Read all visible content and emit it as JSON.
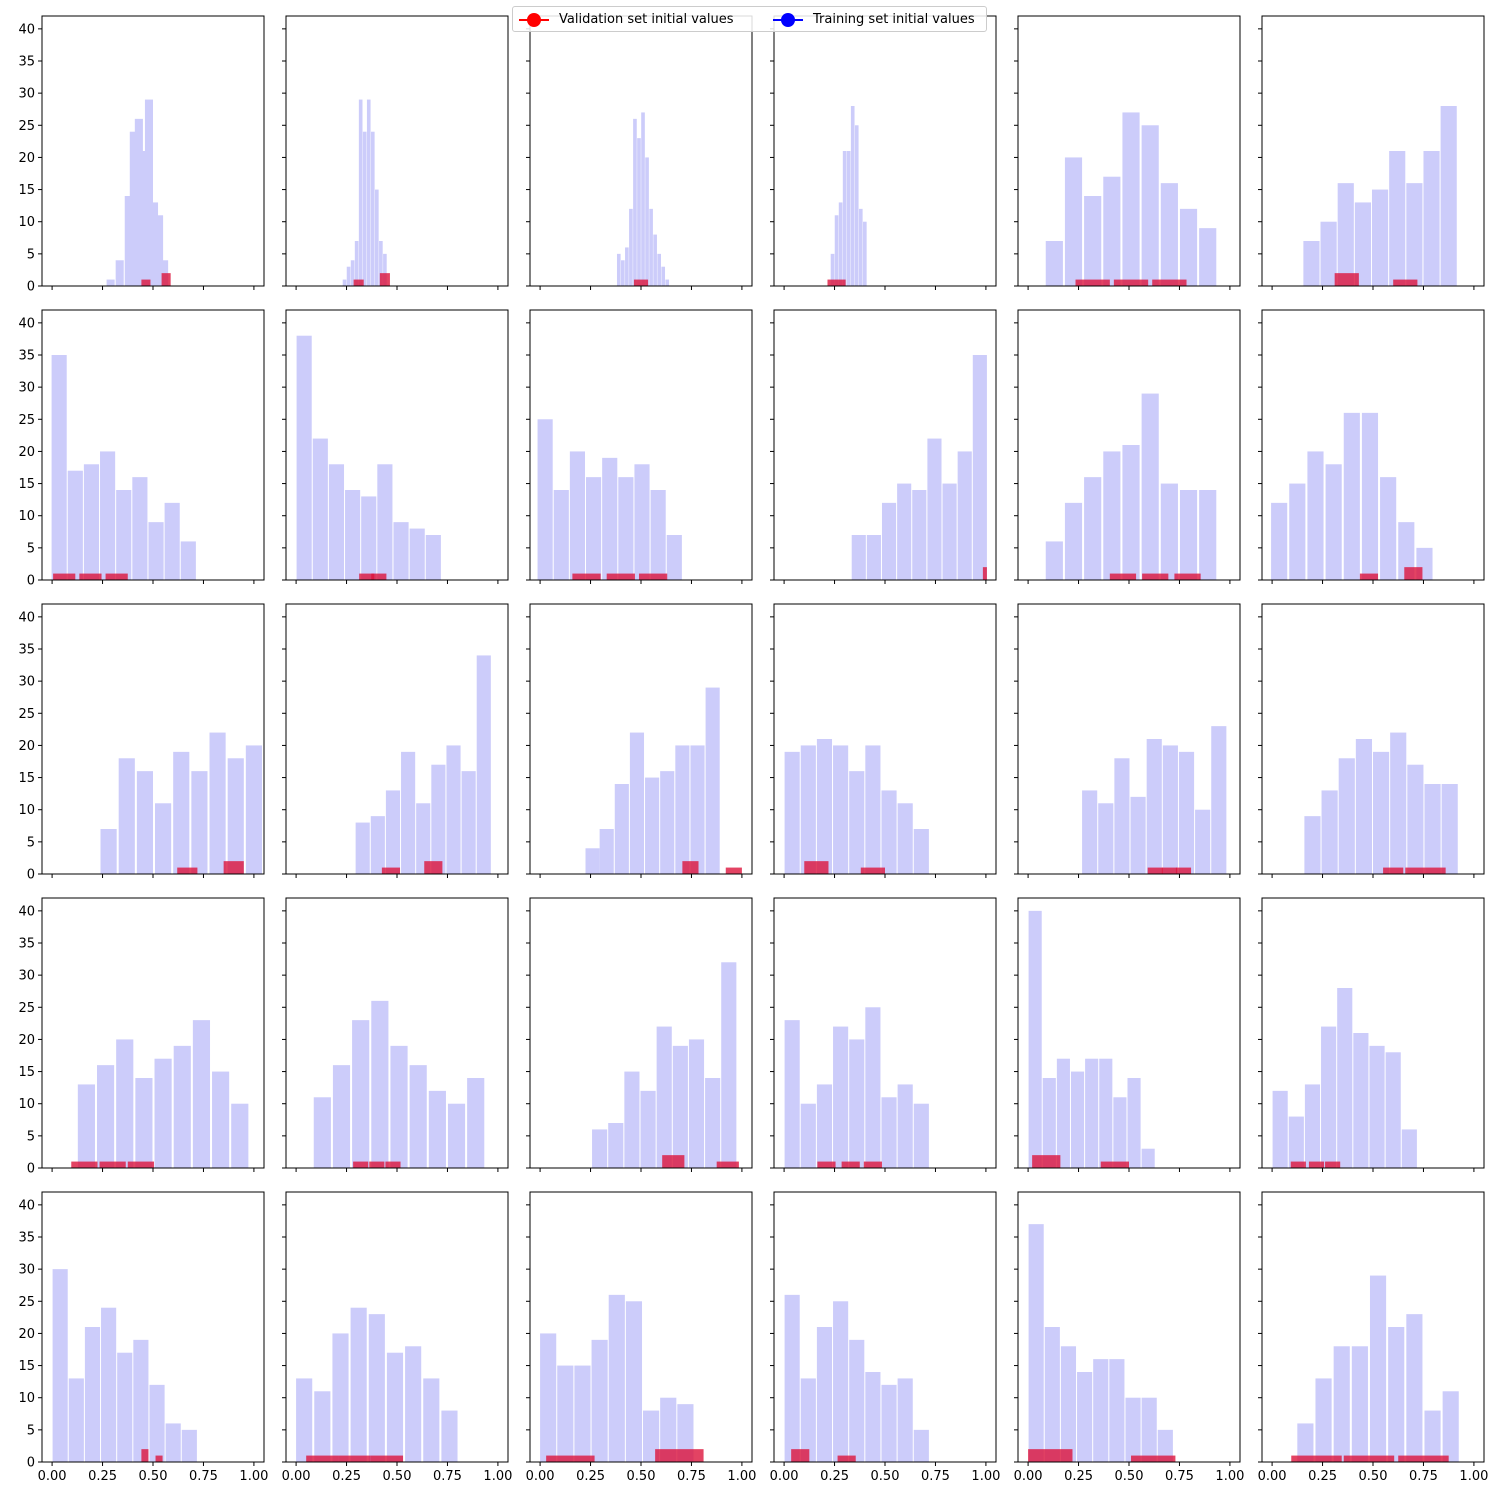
{
  "legend": {
    "validation": {
      "label": "Validation set initial values",
      "color": "#ff0000"
    },
    "training": {
      "label": "Training set initial values",
      "color": "#0000ff"
    }
  },
  "colors": {
    "training_bar": "#ccccfa",
    "validation_bar": "#dc143c"
  },
  "chart_data": [
    {
      "type": "bar",
      "x": [
        0.29,
        0.335,
        0.38,
        0.405,
        0.43,
        0.455,
        0.48,
        0.505,
        0.53,
        0.555,
        0.58,
        0.605,
        0.65
      ],
      "values": [
        1,
        4,
        14,
        24,
        26,
        21,
        29,
        13,
        11,
        4,
        0,
        0,
        0
      ],
      "barwidth": 0.04,
      "validation": {
        "x": [
          0.465,
          0.565
        ],
        "values": [
          1,
          2
        ],
        "barwidth": 0.045
      },
      "xlim": [
        -0.05,
        1.05
      ],
      "ylim": [
        0,
        42
      ]
    },
    {
      "type": "bar",
      "x": [
        0.24,
        0.26,
        0.28,
        0.3,
        0.32,
        0.34,
        0.36,
        0.38,
        0.4,
        0.42,
        0.44,
        0.46
      ],
      "values": [
        1,
        3,
        4,
        7,
        29,
        24,
        29,
        24,
        15,
        7,
        5,
        0
      ],
      "barwidth": 0.018,
      "validation": {
        "x": [
          0.31,
          0.44
        ],
        "values": [
          1,
          2
        ],
        "barwidth": 0.05
      },
      "xlim": [
        -0.05,
        1.05
      ],
      "ylim": [
        0,
        42
      ]
    },
    {
      "type": "bar",
      "x": [
        0.39,
        0.41,
        0.43,
        0.45,
        0.47,
        0.49,
        0.51,
        0.53,
        0.55,
        0.57,
        0.59,
        0.61,
        0.63,
        0.65
      ],
      "values": [
        5,
        4,
        6,
        12,
        26,
        23,
        27,
        20,
        12,
        8,
        5,
        3,
        1,
        0
      ],
      "barwidth": 0.018,
      "validation": {
        "x": [
          0.5
        ],
        "values": [
          1
        ],
        "barwidth": 0.07
      },
      "xlim": [
        -0.05,
        1.05
      ],
      "ylim": [
        0,
        42
      ]
    },
    {
      "type": "bar",
      "x": [
        0.24,
        0.26,
        0.28,
        0.3,
        0.32,
        0.34,
        0.36,
        0.38,
        0.4,
        0.42
      ],
      "values": [
        5,
        11,
        13,
        21,
        21,
        28,
        25,
        12,
        10,
        0
      ],
      "barwidth": 0.018,
      "validation": {
        "x": [
          0.26
        ],
        "values": [
          1
        ],
        "barwidth": 0.09
      },
      "xlim": [
        -0.05,
        1.05
      ],
      "ylim": [
        0,
        42
      ]
    },
    {
      "type": "bar",
      "x": [
        0.13,
        0.225,
        0.32,
        0.415,
        0.51,
        0.605,
        0.7,
        0.795,
        0.89
      ],
      "values": [
        7,
        20,
        14,
        17,
        27,
        25,
        16,
        12,
        9
      ],
      "barwidth": 0.085,
      "validation": {
        "x": [
          0.32,
          0.51,
          0.7
        ],
        "values": [
          1,
          1,
          1
        ],
        "barwidth": 0.17
      },
      "xlim": [
        -0.05,
        1.05
      ],
      "ylim": [
        0,
        42
      ]
    },
    {
      "type": "bar",
      "x": [
        0.195,
        0.28,
        0.365,
        0.45,
        0.535,
        0.62,
        0.705,
        0.79,
        0.875,
        0.96
      ],
      "values": [
        7,
        10,
        16,
        13,
        15,
        21,
        16,
        21,
        28,
        0
      ],
      "barwidth": 0.08,
      "validation": {
        "x": [
          0.37,
          0.66
        ],
        "values": [
          2,
          1
        ],
        "barwidth": 0.12
      },
      "xlim": [
        -0.05,
        1.05
      ],
      "ylim": [
        0,
        42
      ]
    },
    {
      "type": "bar",
      "x": [
        0.035,
        0.115,
        0.195,
        0.275,
        0.355,
        0.435,
        0.515,
        0.595,
        0.675
      ],
      "values": [
        35,
        17,
        18,
        20,
        14,
        16,
        9,
        12,
        6
      ],
      "barwidth": 0.075,
      "validation": {
        "x": [
          0.06,
          0.19,
          0.32
        ],
        "values": [
          1,
          1,
          1
        ],
        "barwidth": 0.11
      },
      "xlim": [
        -0.05,
        1.05
      ],
      "ylim": [
        0,
        42
      ]
    },
    {
      "type": "bar",
      "x": [
        0.04,
        0.12,
        0.2,
        0.28,
        0.36,
        0.44,
        0.52,
        0.6,
        0.68
      ],
      "values": [
        38,
        22,
        18,
        14,
        13,
        18,
        9,
        8,
        7
      ],
      "barwidth": 0.075,
      "validation": {
        "x": [
          0.35,
          0.41
        ],
        "values": [
          1,
          1
        ],
        "barwidth": 0.075
      },
      "xlim": [
        -0.05,
        1.05
      ],
      "ylim": [
        0,
        42
      ]
    },
    {
      "type": "bar",
      "x": [
        0.025,
        0.105,
        0.185,
        0.265,
        0.345,
        0.425,
        0.505,
        0.585,
        0.665,
        0.745
      ],
      "values": [
        25,
        14,
        20,
        16,
        19,
        16,
        18,
        14,
        7,
        0
      ],
      "barwidth": 0.075,
      "validation": {
        "x": [
          0.23,
          0.4,
          0.56
        ],
        "values": [
          1,
          1,
          1
        ],
        "barwidth": 0.14
      },
      "xlim": [
        -0.05,
        1.05
      ],
      "ylim": [
        0,
        42
      ]
    },
    {
      "type": "bar",
      "x": [
        0.37,
        0.445,
        0.52,
        0.595,
        0.67,
        0.745,
        0.82,
        0.895,
        0.97
      ],
      "values": [
        7,
        7,
        12,
        15,
        14,
        22,
        15,
        20,
        35
      ],
      "barwidth": 0.07,
      "validation": {
        "x": [
          0.995
        ],
        "values": [
          2
        ],
        "barwidth": 0.02
      },
      "xlim": [
        -0.05,
        1.05
      ],
      "ylim": [
        0,
        42
      ]
    },
    {
      "type": "bar",
      "x": [
        0.13,
        0.225,
        0.32,
        0.415,
        0.51,
        0.605,
        0.7,
        0.795,
        0.89
      ],
      "values": [
        6,
        12,
        16,
        20,
        21,
        29,
        15,
        14,
        14
      ],
      "barwidth": 0.085,
      "validation": {
        "x": [
          0.47,
          0.63,
          0.79
        ],
        "values": [
          1,
          1,
          1
        ],
        "barwidth": 0.13
      },
      "xlim": [
        -0.05,
        1.05
      ],
      "ylim": [
        0,
        42
      ]
    },
    {
      "type": "bar",
      "x": [
        0.035,
        0.125,
        0.215,
        0.305,
        0.395,
        0.485,
        0.575,
        0.665,
        0.755
      ],
      "values": [
        12,
        15,
        20,
        18,
        26,
        26,
        16,
        9,
        5
      ],
      "barwidth": 0.08,
      "validation": {
        "x": [
          0.48,
          0.7
        ],
        "values": [
          1,
          2
        ],
        "barwidth": 0.09
      },
      "xlim": [
        -0.05,
        1.05
      ],
      "ylim": [
        0,
        42
      ]
    },
    {
      "type": "bar",
      "x": [
        0.28,
        0.37,
        0.46,
        0.55,
        0.64,
        0.73,
        0.82,
        0.91,
        1.0
      ],
      "values": [
        7,
        18,
        16,
        11,
        19,
        16,
        22,
        18,
        20
      ],
      "barwidth": 0.08,
      "validation": {
        "x": [
          0.67,
          0.9
        ],
        "values": [
          1,
          2
        ],
        "barwidth": 0.1
      },
      "xlim": [
        -0.05,
        1.05
      ],
      "ylim": [
        0,
        42
      ]
    },
    {
      "type": "bar",
      "x": [
        0.33,
        0.405,
        0.48,
        0.555,
        0.63,
        0.705,
        0.78,
        0.855,
        0.93
      ],
      "values": [
        8,
        9,
        13,
        19,
        11,
        17,
        20,
        16,
        34
      ],
      "barwidth": 0.07,
      "validation": {
        "x": [
          0.47,
          0.68
        ],
        "values": [
          1,
          2
        ],
        "barwidth": 0.09
      },
      "xlim": [
        -0.05,
        1.05
      ],
      "ylim": [
        0,
        42
      ]
    },
    {
      "type": "bar",
      "x": [
        0.26,
        0.33,
        0.405,
        0.48,
        0.555,
        0.63,
        0.705,
        0.78,
        0.855,
        0.93
      ],
      "values": [
        4,
        7,
        14,
        22,
        15,
        16,
        20,
        20,
        29,
        0
      ],
      "barwidth": 0.07,
      "validation": {
        "x": [
          0.745,
          0.96
        ],
        "values": [
          2,
          1
        ],
        "barwidth": 0.08
      },
      "xlim": [
        -0.05,
        1.05
      ],
      "ylim": [
        0,
        42
      ]
    },
    {
      "type": "bar",
      "x": [
        0.04,
        0.12,
        0.2,
        0.28,
        0.36,
        0.44,
        0.52,
        0.6,
        0.68,
        0.76
      ],
      "values": [
        19,
        20,
        21,
        20,
        16,
        20,
        13,
        11,
        7,
        0
      ],
      "barwidth": 0.075,
      "validation": {
        "x": [
          0.16,
          0.44
        ],
        "values": [
          2,
          1
        ],
        "barwidth": 0.12
      },
      "xlim": [
        -0.05,
        1.05
      ],
      "ylim": [
        0,
        42
      ]
    },
    {
      "type": "bar",
      "x": [
        0.305,
        0.385,
        0.465,
        0.545,
        0.625,
        0.705,
        0.785,
        0.865,
        0.945
      ],
      "values": [
        13,
        11,
        18,
        12,
        21,
        20,
        19,
        10,
        23
      ],
      "barwidth": 0.075,
      "validation": {
        "x": [
          0.63,
          0.7,
          0.77
        ],
        "values": [
          1,
          1,
          1
        ],
        "barwidth": 0.075
      },
      "xlim": [
        -0.05,
        1.05
      ],
      "ylim": [
        0,
        42
      ]
    },
    {
      "type": "bar",
      "x": [
        0.2,
        0.285,
        0.37,
        0.455,
        0.54,
        0.625,
        0.71,
        0.795,
        0.88,
        0.965
      ],
      "values": [
        9,
        13,
        18,
        21,
        19,
        22,
        17,
        14,
        14,
        0
      ],
      "barwidth": 0.08,
      "validation": {
        "x": [
          0.6,
          0.71,
          0.81
        ],
        "values": [
          1,
          1,
          1
        ],
        "barwidth": 0.1
      },
      "xlim": [
        -0.05,
        1.05
      ],
      "ylim": [
        0,
        42
      ]
    },
    {
      "type": "bar",
      "x": [
        0.17,
        0.265,
        0.36,
        0.455,
        0.55,
        0.645,
        0.74,
        0.835,
        0.93
      ],
      "values": [
        13,
        16,
        20,
        14,
        17,
        19,
        23,
        15,
        10
      ],
      "barwidth": 0.085,
      "validation": {
        "x": [
          0.16,
          0.3,
          0.44
        ],
        "values": [
          1,
          1,
          1
        ],
        "barwidth": 0.13
      },
      "xlim": [
        -0.05,
        1.05
      ],
      "ylim": [
        0,
        42
      ]
    },
    {
      "type": "bar",
      "x": [
        0.13,
        0.225,
        0.32,
        0.415,
        0.51,
        0.605,
        0.7,
        0.795,
        0.89
      ],
      "values": [
        11,
        16,
        23,
        26,
        19,
        16,
        12,
        10,
        14
      ],
      "barwidth": 0.085,
      "validation": {
        "x": [
          0.32,
          0.4,
          0.48
        ],
        "values": [
          1,
          1,
          1
        ],
        "barwidth": 0.075
      },
      "xlim": [
        -0.05,
        1.05
      ],
      "ylim": [
        0,
        42
      ]
    },
    {
      "type": "bar",
      "x": [
        0.295,
        0.375,
        0.455,
        0.535,
        0.615,
        0.695,
        0.775,
        0.855,
        0.935
      ],
      "values": [
        6,
        7,
        15,
        12,
        22,
        19,
        20,
        14,
        32
      ],
      "barwidth": 0.075,
      "validation": {
        "x": [
          0.66,
          0.93
        ],
        "values": [
          2,
          1
        ],
        "barwidth": 0.11
      },
      "xlim": [
        -0.05,
        1.05
      ],
      "ylim": [
        0,
        42
      ]
    },
    {
      "type": "bar",
      "x": [
        0.04,
        0.12,
        0.2,
        0.28,
        0.36,
        0.44,
        0.52,
        0.6,
        0.68
      ],
      "values": [
        23,
        10,
        13,
        22,
        20,
        25,
        11,
        13,
        10
      ],
      "barwidth": 0.075,
      "validation": {
        "x": [
          0.21,
          0.33,
          0.44
        ],
        "values": [
          1,
          1,
          1
        ],
        "barwidth": 0.09
      },
      "xlim": [
        -0.05,
        1.05
      ],
      "ylim": [
        0,
        42
      ]
    },
    {
      "type": "bar",
      "x": [
        0.035,
        0.105,
        0.175,
        0.245,
        0.315,
        0.385,
        0.455,
        0.525,
        0.595,
        0.665
      ],
      "values": [
        40,
        14,
        17,
        15,
        17,
        17,
        11,
        14,
        3,
        0
      ],
      "barwidth": 0.065,
      "validation": {
        "x": [
          0.09,
          0.43
        ],
        "values": [
          2,
          1
        ],
        "barwidth": 0.14
      },
      "xlim": [
        -0.05,
        1.05
      ],
      "ylim": [
        0,
        42
      ]
    },
    {
      "type": "bar",
      "x": [
        0.04,
        0.12,
        0.2,
        0.28,
        0.36,
        0.44,
        0.52,
        0.6,
        0.68,
        0.76
      ],
      "values": [
        12,
        8,
        13,
        22,
        28,
        21,
        19,
        18,
        6,
        0
      ],
      "barwidth": 0.075,
      "validation": {
        "x": [
          0.13,
          0.22,
          0.3
        ],
        "values": [
          1,
          1,
          1
        ],
        "barwidth": 0.075
      },
      "xlim": [
        -0.05,
        1.05
      ],
      "ylim": [
        0,
        42
      ]
    },
    {
      "type": "bar",
      "x": [
        0.04,
        0.12,
        0.2,
        0.28,
        0.36,
        0.44,
        0.52,
        0.6,
        0.68,
        0.76
      ],
      "values": [
        30,
        13,
        21,
        24,
        17,
        19,
        12,
        6,
        5,
        0
      ],
      "barwidth": 0.075,
      "validation": {
        "x": [
          0.46,
          0.53
        ],
        "values": [
          2,
          1
        ],
        "barwidth": 0.035
      },
      "xlim": [
        -0.05,
        1.05
      ],
      "ylim": [
        0,
        42
      ]
    },
    {
      "type": "bar",
      "x": [
        0.04,
        0.13,
        0.22,
        0.31,
        0.4,
        0.49,
        0.58,
        0.67,
        0.76,
        0.85
      ],
      "values": [
        13,
        11,
        20,
        24,
        23,
        17,
        18,
        13,
        8,
        0
      ],
      "barwidth": 0.08,
      "validation": {
        "x": [
          0.13,
          0.29,
          0.45
        ],
        "values": [
          1,
          1,
          1
        ],
        "barwidth": 0.16
      },
      "xlim": [
        -0.05,
        1.05
      ],
      "ylim": [
        0,
        42
      ]
    },
    {
      "type": "bar",
      "x": [
        0.04,
        0.125,
        0.21,
        0.295,
        0.38,
        0.465,
        0.55,
        0.635,
        0.72,
        0.805
      ],
      "values": [
        20,
        15,
        15,
        19,
        26,
        25,
        8,
        10,
        9,
        0
      ],
      "barwidth": 0.08,
      "validation": {
        "x": [
          0.15,
          0.69
        ],
        "values": [
          1,
          2
        ],
        "barwidth": 0.24
      },
      "xlim": [
        -0.05,
        1.05
      ],
      "ylim": [
        0,
        42
      ]
    },
    {
      "type": "bar",
      "x": [
        0.04,
        0.12,
        0.2,
        0.28,
        0.36,
        0.44,
        0.52,
        0.6,
        0.68,
        0.76
      ],
      "values": [
        26,
        13,
        21,
        25,
        19,
        14,
        12,
        13,
        5,
        0
      ],
      "barwidth": 0.075,
      "validation": {
        "x": [
          0.08,
          0.31
        ],
        "values": [
          2,
          1
        ],
        "barwidth": 0.09
      },
      "xlim": [
        -0.05,
        1.05
      ],
      "ylim": [
        0,
        42
      ]
    },
    {
      "type": "bar",
      "x": [
        0.04,
        0.12,
        0.2,
        0.28,
        0.36,
        0.44,
        0.52,
        0.6,
        0.68,
        0.76
      ],
      "values": [
        37,
        21,
        18,
        14,
        16,
        16,
        10,
        10,
        5,
        0
      ],
      "barwidth": 0.075,
      "validation": {
        "x": [
          0.11,
          0.62
        ],
        "values": [
          2,
          1
        ],
        "barwidth": 0.22
      },
      "xlim": [
        -0.05,
        1.05
      ],
      "ylim": [
        0,
        42
      ]
    },
    {
      "type": "bar",
      "x": [
        0.075,
        0.165,
        0.255,
        0.345,
        0.435,
        0.525,
        0.615,
        0.705,
        0.795,
        0.885,
        0.975
      ],
      "values": [
        0,
        6,
        13,
        18,
        18,
        29,
        21,
        23,
        8,
        11,
        0
      ],
      "barwidth": 0.08,
      "validation": {
        "x": [
          0.22,
          0.48,
          0.75
        ],
        "values": [
          1,
          1,
          1
        ],
        "barwidth": 0.25
      },
      "xlim": [
        -0.05,
        1.05
      ],
      "ylim": [
        0,
        42
      ]
    }
  ],
  "y_ticks": [
    "0",
    "5",
    "10",
    "15",
    "20",
    "25",
    "30",
    "35",
    "40"
  ],
  "x_ticks": [
    "0.00",
    "0.25",
    "0.50",
    "0.75",
    "1.00"
  ]
}
